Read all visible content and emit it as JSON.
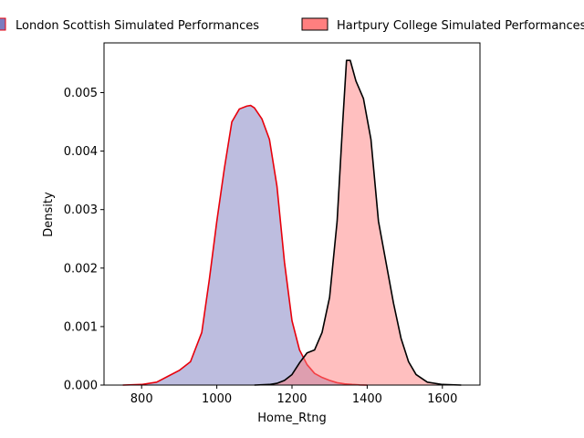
{
  "chart_data": {
    "type": "area",
    "title": "",
    "xlabel": "Home_Rtng",
    "ylabel": "Density",
    "xlim": [
      700,
      1700
    ],
    "ylim": [
      0,
      0.00585
    ],
    "xticks": [
      800,
      1000,
      1200,
      1400,
      1600
    ],
    "yticks": [
      0.0,
      0.001,
      0.002,
      0.003,
      0.004,
      0.005
    ],
    "ytick_labels": [
      "0.000",
      "0.001",
      "0.002",
      "0.003",
      "0.004",
      "0.005"
    ],
    "grid": false,
    "legend_placement": "top",
    "series": [
      {
        "name": "London Scottish Simulated Performances",
        "fill_color": "#7b7bbf",
        "line_color": "#e8000b",
        "x": [
          750,
          800,
          840,
          870,
          900,
          930,
          960,
          980,
          1000,
          1020,
          1040,
          1060,
          1080,
          1090,
          1100,
          1120,
          1140,
          1160,
          1180,
          1200,
          1220,
          1240,
          1260,
          1280,
          1300,
          1320,
          1340,
          1360,
          1380,
          1400
        ],
        "y": [
          0.0,
          1e-05,
          5e-05,
          0.00015,
          0.00025,
          0.0004,
          0.0009,
          0.0018,
          0.0028,
          0.0037,
          0.0045,
          0.00472,
          0.00477,
          0.00478,
          0.00474,
          0.00455,
          0.0042,
          0.0034,
          0.0021,
          0.0011,
          0.0006,
          0.00035,
          0.0002,
          0.00013,
          8e-05,
          4e-05,
          2e-05,
          1e-05,
          3e-06,
          0.0
        ]
      },
      {
        "name": "Hartpury College Simulated Performances",
        "fill_color": "#ff7f7f",
        "line_color": "#000000",
        "x": [
          1100,
          1140,
          1160,
          1180,
          1200,
          1220,
          1240,
          1260,
          1280,
          1300,
          1320,
          1335,
          1345,
          1355,
          1370,
          1390,
          1410,
          1430,
          1450,
          1470,
          1490,
          1510,
          1530,
          1560,
          1600,
          1650
        ],
        "y": [
          0.0,
          1e-05,
          3e-05,
          8e-05,
          0.00018,
          0.00038,
          0.00055,
          0.0006,
          0.0009,
          0.0015,
          0.0028,
          0.0045,
          0.00555,
          0.00555,
          0.0052,
          0.0049,
          0.0042,
          0.0028,
          0.0021,
          0.0014,
          0.0008,
          0.0004,
          0.00018,
          5e-05,
          1e-05,
          0.0
        ]
      }
    ]
  }
}
